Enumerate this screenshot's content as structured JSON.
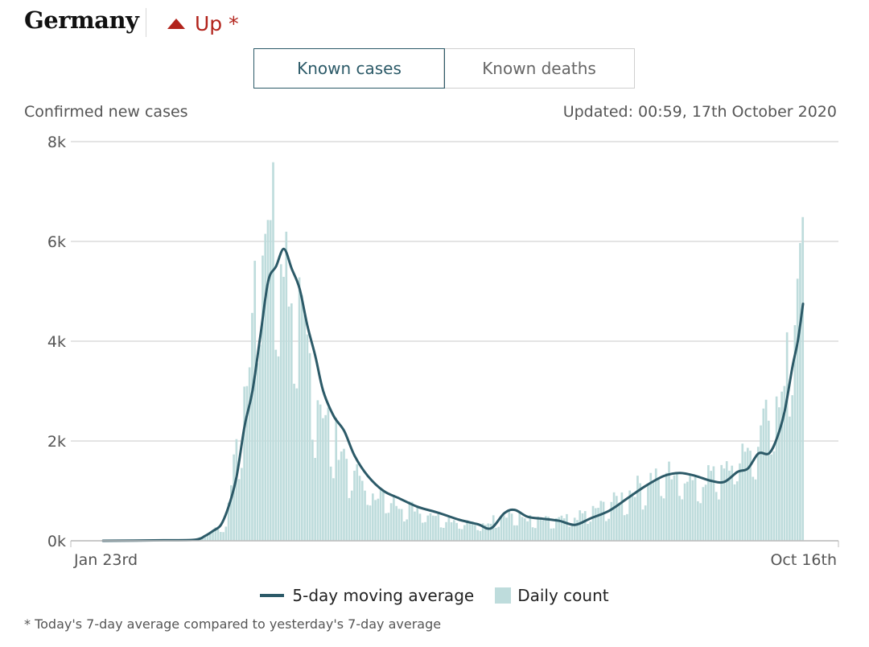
{
  "header": {
    "country": "Germany",
    "trend_label": "Up *",
    "trend_icon": "triangle-up-icon",
    "trend_color": "#b2231b"
  },
  "tabs": [
    {
      "label": "Known cases",
      "active": true
    },
    {
      "label": "Known deaths",
      "active": false
    }
  ],
  "subtitle": "Confirmed new cases",
  "updated": "Updated: 00:59, 17th October 2020",
  "legend": {
    "line_label": "5-day moving average",
    "bar_label": "Daily count"
  },
  "footnote": "* Today's 7-day average compared to yesterday's 7-day average",
  "colors": {
    "line": "#2c5a68",
    "bars": "#bedcdc",
    "grid": "#dcdcdc",
    "accent_red": "#b2231b"
  },
  "chart_data": {
    "type": "bar",
    "ylabel": "Confirmed new cases",
    "ylim": [
      0,
      8000
    ],
    "yticks": [
      0,
      2000,
      4000,
      6000,
      8000
    ],
    "ytick_labels": [
      "0k",
      "2k",
      "4k",
      "6k",
      "8k"
    ],
    "x_range": [
      "2020-01-23",
      "2020-10-16"
    ],
    "xtick_labels": [
      "Jan 23rd",
      "Oct 16th"
    ],
    "grid": true,
    "legend_position": "bottom",
    "series": [
      {
        "name": "Daily count",
        "type": "bar",
        "keypoints": [
          {
            "x": "2020-01-23",
            "y": 0
          },
          {
            "x": "2020-02-27",
            "y": 20
          },
          {
            "x": "2020-03-05",
            "y": 200
          },
          {
            "x": "2020-03-10",
            "y": 300
          },
          {
            "x": "2020-03-13",
            "y": 1500
          },
          {
            "x": "2020-03-16",
            "y": 2500
          },
          {
            "x": "2020-03-19",
            "y": 4000
          },
          {
            "x": "2020-03-22",
            "y": 5500
          },
          {
            "x": "2020-03-25",
            "y": 6000
          },
          {
            "x": "2020-03-28",
            "y": 6400
          },
          {
            "x": "2020-03-31",
            "y": 5800
          },
          {
            "x": "2020-04-03",
            "y": 5200
          },
          {
            "x": "2020-04-06",
            "y": 4500
          },
          {
            "x": "2020-04-09",
            "y": 3800
          },
          {
            "x": "2020-04-13",
            "y": 3000
          },
          {
            "x": "2020-04-17",
            "y": 2500
          },
          {
            "x": "2020-04-21",
            "y": 2000
          },
          {
            "x": "2020-04-25",
            "y": 1600
          },
          {
            "x": "2020-04-30",
            "y": 1200
          },
          {
            "x": "2020-05-06",
            "y": 950
          },
          {
            "x": "2020-05-12",
            "y": 800
          },
          {
            "x": "2020-05-18",
            "y": 680
          },
          {
            "x": "2020-05-25",
            "y": 600
          },
          {
            "x": "2020-06-01",
            "y": 450
          },
          {
            "x": "2020-06-08",
            "y": 380
          },
          {
            "x": "2020-06-15",
            "y": 300
          },
          {
            "x": "2020-06-18",
            "y": 350
          },
          {
            "x": "2020-06-22",
            "y": 500
          },
          {
            "x": "2020-06-26",
            "y": 550
          },
          {
            "x": "2020-07-01",
            "y": 450
          },
          {
            "x": "2020-07-07",
            "y": 400
          },
          {
            "x": "2020-07-14",
            "y": 400
          },
          {
            "x": "2020-07-21",
            "y": 450
          },
          {
            "x": "2020-07-28",
            "y": 600
          },
          {
            "x": "2020-08-04",
            "y": 750
          },
          {
            "x": "2020-08-11",
            "y": 950
          },
          {
            "x": "2020-08-18",
            "y": 1200
          },
          {
            "x": "2020-08-25",
            "y": 1350
          },
          {
            "x": "2020-09-01",
            "y": 1300
          },
          {
            "x": "2020-09-08",
            "y": 1250
          },
          {
            "x": "2020-09-15",
            "y": 1500
          },
          {
            "x": "2020-09-22",
            "y": 1800
          },
          {
            "x": "2020-09-29",
            "y": 2000
          },
          {
            "x": "2020-10-04",
            "y": 2500
          },
          {
            "x": "2020-10-08",
            "y": 3200
          },
          {
            "x": "2020-10-11",
            "y": 3900
          },
          {
            "x": "2020-10-13",
            "y": 4500
          },
          {
            "x": "2020-10-15",
            "y": 6100
          },
          {
            "x": "2020-10-16",
            "y": 7100
          }
        ]
      },
      {
        "name": "5-day moving average",
        "type": "line",
        "points": [
          {
            "x": "2020-01-23",
            "y": 0
          },
          {
            "x": "2020-02-15",
            "y": 10
          },
          {
            "x": "2020-02-27",
            "y": 20
          },
          {
            "x": "2020-03-02",
            "y": 100
          },
          {
            "x": "2020-03-05",
            "y": 200
          },
          {
            "x": "2020-03-08",
            "y": 320
          },
          {
            "x": "2020-03-11",
            "y": 700
          },
          {
            "x": "2020-03-14",
            "y": 1300
          },
          {
            "x": "2020-03-17",
            "y": 2300
          },
          {
            "x": "2020-03-20",
            "y": 3000
          },
          {
            "x": "2020-03-23",
            "y": 4100
          },
          {
            "x": "2020-03-26",
            "y": 5200
          },
          {
            "x": "2020-03-29",
            "y": 5500
          },
          {
            "x": "2020-04-01",
            "y": 5850
          },
          {
            "x": "2020-04-04",
            "y": 5450
          },
          {
            "x": "2020-04-07",
            "y": 5050
          },
          {
            "x": "2020-04-10",
            "y": 4300
          },
          {
            "x": "2020-04-13",
            "y": 3700
          },
          {
            "x": "2020-04-16",
            "y": 3000
          },
          {
            "x": "2020-04-20",
            "y": 2500
          },
          {
            "x": "2020-04-24",
            "y": 2200
          },
          {
            "x": "2020-04-28",
            "y": 1700
          },
          {
            "x": "2020-05-03",
            "y": 1300
          },
          {
            "x": "2020-05-09",
            "y": 1000
          },
          {
            "x": "2020-05-15",
            "y": 850
          },
          {
            "x": "2020-05-22",
            "y": 680
          },
          {
            "x": "2020-05-30",
            "y": 560
          },
          {
            "x": "2020-06-07",
            "y": 420
          },
          {
            "x": "2020-06-14",
            "y": 330
          },
          {
            "x": "2020-06-19",
            "y": 250
          },
          {
            "x": "2020-06-24",
            "y": 550
          },
          {
            "x": "2020-06-28",
            "y": 620
          },
          {
            "x": "2020-07-03",
            "y": 480
          },
          {
            "x": "2020-07-09",
            "y": 440
          },
          {
            "x": "2020-07-15",
            "y": 400
          },
          {
            "x": "2020-07-21",
            "y": 320
          },
          {
            "x": "2020-07-27",
            "y": 450
          },
          {
            "x": "2020-08-03",
            "y": 600
          },
          {
            "x": "2020-08-10",
            "y": 850
          },
          {
            "x": "2020-08-17",
            "y": 1100
          },
          {
            "x": "2020-08-24",
            "y": 1300
          },
          {
            "x": "2020-08-30",
            "y": 1360
          },
          {
            "x": "2020-09-05",
            "y": 1300
          },
          {
            "x": "2020-09-11",
            "y": 1200
          },
          {
            "x": "2020-09-16",
            "y": 1180
          },
          {
            "x": "2020-09-21",
            "y": 1380
          },
          {
            "x": "2020-09-25",
            "y": 1450
          },
          {
            "x": "2020-09-29",
            "y": 1750
          },
          {
            "x": "2020-10-03",
            "y": 1750
          },
          {
            "x": "2020-10-06",
            "y": 2050
          },
          {
            "x": "2020-10-09",
            "y": 2600
          },
          {
            "x": "2020-10-12",
            "y": 3500
          },
          {
            "x": "2020-10-14",
            "y": 4000
          },
          {
            "x": "2020-10-16",
            "y": 4750
          }
        ]
      }
    ]
  }
}
